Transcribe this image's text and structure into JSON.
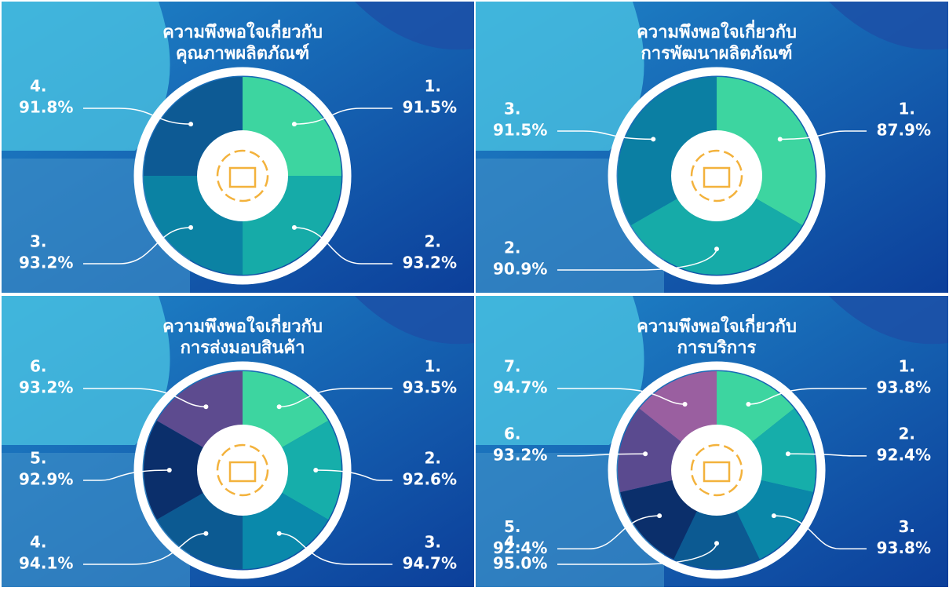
{
  "chart_data": [
    {
      "type": "donut",
      "title": [
        "ความพึงพอใจเกี่ยวกับ",
        "คุณภาพผลิตภัณฑ์"
      ],
      "categories": [
        "1.",
        "2.",
        "3.",
        "4."
      ],
      "values": [
        91.5,
        93.2,
        93.2,
        91.8
      ],
      "value_labels": [
        "91.5%",
        "93.2%",
        "93.2%",
        "91.8%"
      ],
      "colors": [
        "#3dd5a0",
        "#16aba8",
        "#0b82a3",
        "#0d5a94"
      ]
    },
    {
      "type": "donut",
      "title": [
        "ความพึงพอใจเกี่ยวกับ",
        "การพัฒนาผลิตภัณฑ์"
      ],
      "categories": [
        "1.",
        "2.",
        "3."
      ],
      "values": [
        87.9,
        90.9,
        91.5
      ],
      "value_labels": [
        "87.9%",
        "90.9%",
        "91.5%"
      ],
      "colors": [
        "#3dd5a0",
        "#16aba8",
        "#0b7fa3"
      ]
    },
    {
      "type": "donut",
      "title": [
        "ความพึงพอใจเกี่ยวกับ",
        "การส่งมอบสินค้า"
      ],
      "categories": [
        "1.",
        "2.",
        "3.",
        "4.",
        "5.",
        "6."
      ],
      "values": [
        93.5,
        92.6,
        94.7,
        94.1,
        92.9,
        93.2
      ],
      "value_labels": [
        "93.5%",
        "92.6%",
        "94.7%",
        "94.1%",
        "92.9%",
        "93.2%"
      ],
      "colors": [
        "#3dd5a0",
        "#16aeaa",
        "#0a89ab",
        "#0c5a92",
        "#0b2f6b",
        "#5d4b8f"
      ]
    },
    {
      "type": "donut",
      "title": [
        "ความพึงพอใจเกี่ยวกับ",
        "การบริการ"
      ],
      "categories": [
        "1.",
        "2.",
        "3.",
        "4.",
        "5.",
        "6.",
        "7."
      ],
      "values": [
        93.8,
        92.4,
        93.8,
        95.0,
        92.4,
        93.2,
        94.7
      ],
      "value_labels": [
        "93.8%",
        "92.4%",
        "93.8%",
        "95.0%",
        "92.4%",
        "93.2%",
        "94.7%"
      ],
      "colors": [
        "#3dd5a0",
        "#16aeaa",
        "#0a87a8",
        "#0c5a92",
        "#0b2f6b",
        "#5a4a8f",
        "#9a5fa0"
      ]
    }
  ]
}
